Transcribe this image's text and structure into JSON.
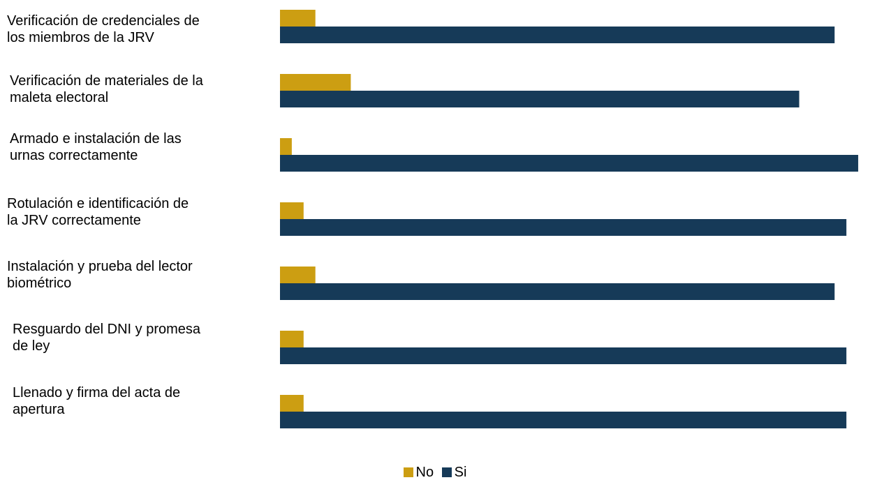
{
  "chart_data": {
    "type": "bar",
    "orientation": "horizontal",
    "categories": [
      "Verificación de credenciales de\nlos miembros de la JRV",
      "Verificación de materiales de la\nmaleta electoral",
      "Armado e instalación de las\nurnas correctamente",
      "Rotulación e identificación de\nla JRV correctamente",
      "Instalación y prueba del lector\nbiométrico",
      "Resguardo del DNI y promesa\nde ley",
      "Llenado y firma del acta de\napertura"
    ],
    "series": [
      {
        "name": "No",
        "color": "#CC9E12",
        "values": [
          6,
          12,
          2,
          4,
          6,
          4,
          4
        ]
      },
      {
        "name": "Si",
        "color": "#163A58",
        "values": [
          94,
          88,
          98,
          96,
          94,
          96,
          96
        ]
      }
    ],
    "xlim": [
      0,
      100
    ],
    "grid": false,
    "legend_position": "bottom"
  }
}
